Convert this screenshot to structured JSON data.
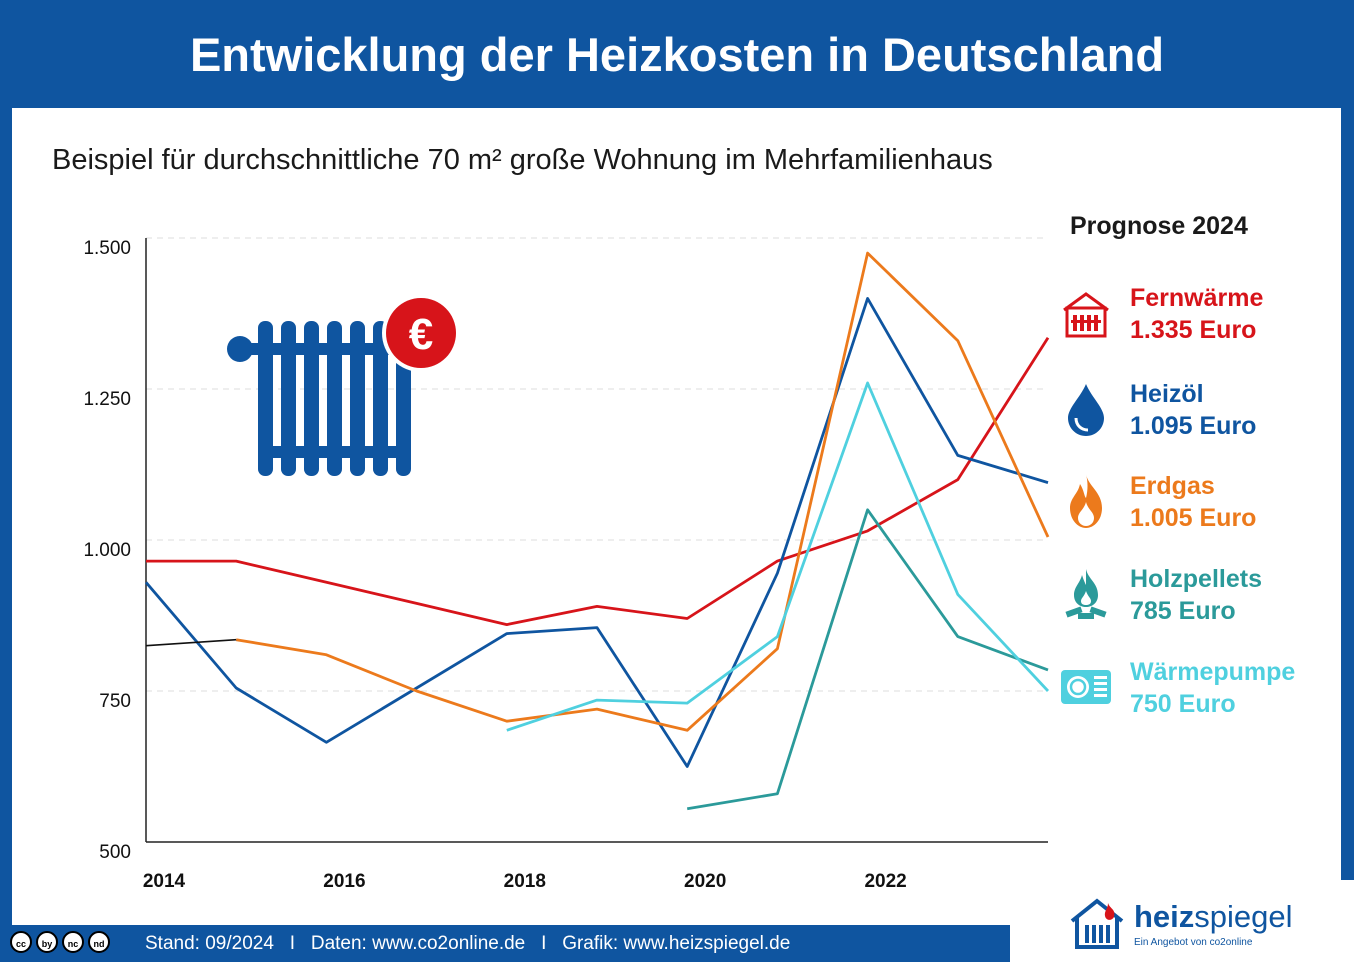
{
  "title": "Entwicklung der Heizkosten in Deutschland",
  "subtitle": "Beispiel für durchschnittliche 70 m² große Wohnung im Mehrfamilienhaus",
  "prognose_label": "Prognose 2024",
  "legend": [
    {
      "name": "Fernwärme",
      "value": "1.335 Euro",
      "color": "#d7141a",
      "icon": "district-heating-icon"
    },
    {
      "name": "Heizöl",
      "value": "1.095 Euro",
      "color": "#0f55a0",
      "icon": "oil-drop-icon"
    },
    {
      "name": "Erdgas",
      "value": "1.005 Euro",
      "color": "#ec7a1c",
      "icon": "flame-icon"
    },
    {
      "name": "Holzpellets",
      "value": "785 Euro",
      "color": "#2b9a9a",
      "icon": "pellet-fire-icon"
    },
    {
      "name": "Wärmepumpe",
      "value": "750 Euro",
      "color": "#4fd0df",
      "icon": "heat-pump-icon"
    }
  ],
  "footer": {
    "cc_icons": [
      "cc",
      "by",
      "nc",
      "nd"
    ],
    "text": "Stand: 09/2024   I   Daten: www.co2online.de   I   Grafik: www.heizspiegel.de"
  },
  "brand": {
    "name_bold": "heiz",
    "name_light": "spiegel",
    "tagline": "Ein Angebot von co2online"
  },
  "chart_data": {
    "type": "line",
    "x": [
      2014,
      2015,
      2016,
      2017,
      2018,
      2019,
      2020,
      2021,
      2022,
      2023,
      2024
    ],
    "xticks": [
      "2014",
      "2016",
      "2018",
      "2020",
      "2022"
    ],
    "yticks": [
      "500",
      "750",
      "1.000",
      "1.250",
      "1.500"
    ],
    "ylim": [
      500,
      1500
    ],
    "grid": "horizontal dashed",
    "series": [
      {
        "name": "Fernwärme",
        "color": "#d7141a",
        "values": [
          965,
          965,
          930,
          895,
          860,
          890,
          870,
          965,
          1015,
          1100,
          1335
        ]
      },
      {
        "name": "Heizöl",
        "color": "#0f55a0",
        "values": [
          930,
          755,
          665,
          755,
          845,
          855,
          625,
          945,
          1400,
          1140,
          1095
        ]
      },
      {
        "name": "Erdgas",
        "color": "#ec7a1c",
        "values": [
          null,
          835,
          810,
          750,
          700,
          720,
          685,
          820,
          1475,
          1330,
          1005
        ]
      },
      {
        "name": "Holzpellets",
        "color": "#2b9a9a",
        "values": [
          null,
          null,
          null,
          null,
          null,
          null,
          555,
          580,
          1050,
          840,
          785
        ]
      },
      {
        "name": "Wärmepumpe",
        "color": "#4fd0df",
        "values": [
          null,
          null,
          null,
          null,
          685,
          735,
          730,
          840,
          1260,
          910,
          750
        ]
      },
      {
        "color": "#111111",
        "values": [
          825,
          835,
          null,
          null,
          null,
          null,
          null,
          null,
          null,
          null,
          null
        ]
      }
    ]
  }
}
